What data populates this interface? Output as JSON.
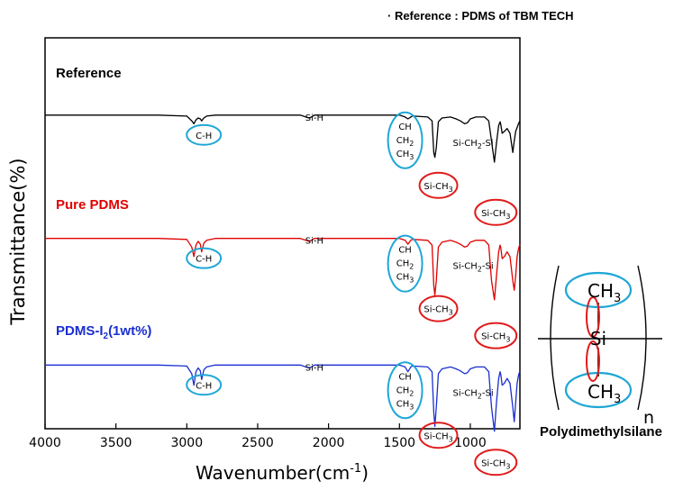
{
  "chart_data": {
    "type": "line",
    "title": "· Reference : PDMS of TBM TECH",
    "xlabel": "Wavenumber(cm-1)",
    "ylabel": "Transmittance(%)",
    "xlim": [
      4000,
      650
    ],
    "x_reversed": true,
    "y_ticks_shown": false,
    "x_ticks": [
      4000,
      3500,
      3000,
      2500,
      2000,
      1500,
      1000
    ],
    "series": [
      {
        "name": "Reference",
        "color": "#000000",
        "offset": 0.8,
        "x": [
          4000,
          3200,
          3000,
          2965,
          2950,
          2935,
          2920,
          2905,
          2895,
          2880,
          2860,
          2800,
          2200,
          2160,
          2140,
          2120,
          2100,
          1500,
          1460,
          1440,
          1420,
          1410,
          1400,
          1300,
          1270,
          1258,
          1250,
          1240,
          1225,
          1200,
          1140,
          1100,
          1070,
          1040,
          1020,
          1000,
          960,
          900,
          870,
          850,
          830,
          815,
          800,
          790,
          785,
          775,
          760,
          740,
          720,
          700,
          690,
          680,
          670,
          660,
          650
        ],
        "y": [
          0.99,
          0.99,
          0.98,
          0.93,
          0.9,
          0.94,
          0.96,
          0.95,
          0.93,
          0.96,
          0.98,
          0.99,
          0.99,
          0.97,
          0.96,
          0.97,
          0.99,
          0.99,
          0.97,
          0.95,
          0.97,
          0.98,
          0.98,
          0.97,
          0.93,
          0.6,
          0.55,
          0.65,
          0.92,
          0.96,
          0.97,
          0.95,
          0.93,
          0.9,
          0.91,
          0.95,
          0.97,
          0.97,
          0.93,
          0.72,
          0.5,
          0.7,
          0.88,
          0.92,
          0.89,
          0.8,
          0.82,
          0.85,
          0.8,
          0.6,
          0.72,
          0.82,
          0.86,
          0.9,
          0.93
        ]
      },
      {
        "name": "Pure PDMS",
        "color": "#e00000",
        "offset": 0.43,
        "x": [
          4000,
          3200,
          3000,
          2965,
          2950,
          2935,
          2920,
          2905,
          2895,
          2880,
          2860,
          2800,
          2200,
          2160,
          2140,
          2120,
          2100,
          1500,
          1460,
          1440,
          1420,
          1410,
          1400,
          1300,
          1270,
          1258,
          1250,
          1240,
          1225,
          1200,
          1140,
          1100,
          1070,
          1040,
          1020,
          1000,
          960,
          900,
          870,
          850,
          830,
          815,
          800,
          790,
          785,
          775,
          760,
          740,
          720,
          700,
          690,
          680,
          670,
          660,
          650
        ],
        "y": [
          0.99,
          0.99,
          0.98,
          0.9,
          0.8,
          0.92,
          0.96,
          0.93,
          0.85,
          0.94,
          0.97,
          0.99,
          0.99,
          0.97,
          0.96,
          0.97,
          0.99,
          0.99,
          0.97,
          0.93,
          0.97,
          0.98,
          0.98,
          0.97,
          0.92,
          0.5,
          0.4,
          0.55,
          0.9,
          0.95,
          0.97,
          0.95,
          0.93,
          0.9,
          0.91,
          0.95,
          0.97,
          0.97,
          0.92,
          0.55,
          0.35,
          0.6,
          0.85,
          0.92,
          0.89,
          0.78,
          0.8,
          0.85,
          0.8,
          0.55,
          0.45,
          0.6,
          0.8,
          0.88,
          0.93
        ]
      },
      {
        "name": "PDMS-I2(1wt%)",
        "color": "#1a2fd0",
        "offset": 0.05,
        "x": [
          4000,
          3200,
          3000,
          2965,
          2950,
          2935,
          2920,
          2905,
          2895,
          2880,
          2860,
          2800,
          2200,
          2160,
          2140,
          2120,
          2100,
          1500,
          1460,
          1440,
          1420,
          1410,
          1400,
          1300,
          1270,
          1258,
          1250,
          1240,
          1225,
          1200,
          1140,
          1100,
          1070,
          1040,
          1020,
          1000,
          960,
          900,
          870,
          850,
          830,
          815,
          800,
          790,
          785,
          775,
          760,
          740,
          720,
          700,
          690,
          680,
          670,
          660,
          650
        ],
        "y": [
          0.99,
          0.99,
          0.98,
          0.9,
          0.78,
          0.92,
          0.96,
          0.93,
          0.84,
          0.94,
          0.97,
          0.99,
          0.99,
          0.97,
          0.96,
          0.97,
          0.99,
          0.99,
          0.97,
          0.92,
          0.97,
          0.98,
          0.98,
          0.97,
          0.92,
          0.5,
          0.35,
          0.55,
          0.9,
          0.95,
          0.97,
          0.95,
          0.93,
          0.9,
          0.91,
          0.95,
          0.97,
          0.97,
          0.92,
          0.55,
          0.3,
          0.6,
          0.85,
          0.92,
          0.89,
          0.78,
          0.8,
          0.85,
          0.8,
          0.55,
          0.4,
          0.6,
          0.8,
          0.88,
          0.93
        ]
      }
    ],
    "annotations": {
      "si_h": "Si-H",
      "c_h": "C-H",
      "ch": "CH",
      "ch2": "CH",
      "ch2_sub": "2",
      "ch3": "CH",
      "ch3_sub": "3",
      "si_ch3": "Si-CH",
      "si_ch3_sub": "3",
      "si_ch2_si_pre": "Si-CH",
      "si_ch2_si_sub": "2",
      "si_ch2_si_post": "-Si"
    },
    "annotation_colors": {
      "blue": "#1ea7d6",
      "red": "#e01b1b"
    }
  },
  "structure": {
    "top": "CH",
    "top_sub": "3",
    "center": "Si",
    "bottom": "CH",
    "bottom_sub": "3",
    "repeat": "n",
    "name": "Polydimethylsilane"
  }
}
